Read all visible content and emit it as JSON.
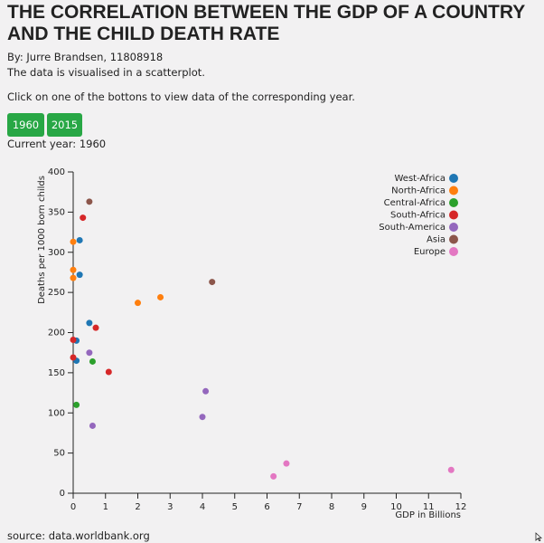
{
  "header": {
    "title": "THE CORRELATION BETWEEN THE GDP OF A COUNTRY AND THE CHILD DEATH RATE",
    "author": "By: Jurre Brandsen, 11808918",
    "description": "The data is visualised in a scatterplot.",
    "instruction": "Click on one of the bottons to view data of the corresponding year."
  },
  "buttons": {
    "year_1960": "1960",
    "year_2015": "2015"
  },
  "current_year": "Current year: 1960",
  "footer": {
    "source": "source: data.worldbank.org"
  },
  "chart_data": {
    "type": "scatter",
    "xlabel": "GDP in Billions",
    "ylabel": "Deaths per 1000 born childs",
    "xlim": [
      0,
      12
    ],
    "ylim": [
      0,
      400
    ],
    "x_ticks": [
      0,
      1,
      2,
      3,
      4,
      5,
      6,
      7,
      8,
      9,
      10,
      11,
      12
    ],
    "y_ticks": [
      0,
      50,
      100,
      150,
      200,
      250,
      300,
      350,
      400
    ],
    "grid": false,
    "legend_position": "top-right",
    "series": [
      {
        "name": "West-Africa",
        "color": "#1f77b4",
        "points": [
          [
            0.2,
            315
          ],
          [
            0.2,
            272
          ],
          [
            0.5,
            212
          ],
          [
            0.1,
            190
          ],
          [
            0.1,
            165
          ]
        ]
      },
      {
        "name": "North-Africa",
        "color": "#ff7f0e",
        "points": [
          [
            0.0,
            313
          ],
          [
            0.0,
            278
          ],
          [
            0.0,
            268
          ],
          [
            2.0,
            237
          ],
          [
            2.7,
            244
          ]
        ]
      },
      {
        "name": "Central-Africa",
        "color": "#2ca02c",
        "points": [
          [
            0.6,
            164
          ],
          [
            0.1,
            110
          ]
        ]
      },
      {
        "name": "South-Africa",
        "color": "#d62728",
        "points": [
          [
            0.3,
            343
          ],
          [
            0.7,
            206
          ],
          [
            0.0,
            191
          ],
          [
            0.0,
            169
          ],
          [
            1.1,
            151
          ]
        ]
      },
      {
        "name": "South-America",
        "color": "#9467bd",
        "points": [
          [
            0.5,
            175
          ],
          [
            4.1,
            127
          ],
          [
            4.0,
            95
          ],
          [
            0.6,
            84
          ]
        ]
      },
      {
        "name": "Asia",
        "color": "#8c564b",
        "points": [
          [
            0.5,
            363
          ],
          [
            4.3,
            263
          ]
        ]
      },
      {
        "name": "Europe",
        "color": "#e377c2",
        "points": [
          [
            6.6,
            37
          ],
          [
            6.2,
            21
          ],
          [
            11.7,
            29
          ]
        ]
      }
    ]
  }
}
